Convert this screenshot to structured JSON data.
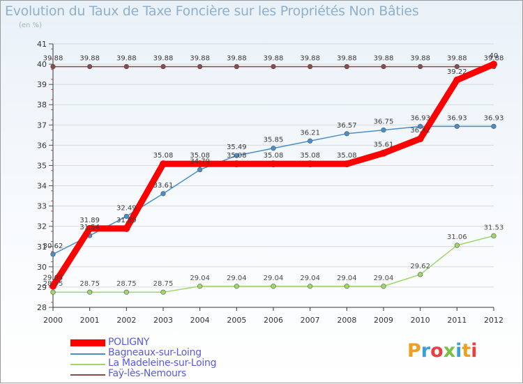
{
  "title": "Evolution du Taux de Taxe Foncière sur les Propriétés Non Bâties",
  "unit": "(en %)",
  "logo": "Proxiti",
  "chart_data": {
    "type": "line",
    "title": "Evolution du Taux de Taxe Foncière sur les Propriétés Non Bâties",
    "ylabel": "(en %)",
    "ylim": [
      28,
      41
    ],
    "yticks": [
      "28",
      "29",
      "30",
      "31",
      "32",
      "33",
      "34",
      "35",
      "36",
      "37",
      "38",
      "39",
      "40",
      "41"
    ],
    "x": [
      "2000",
      "2001",
      "2002",
      "2003",
      "2004",
      "2005",
      "2006",
      "2007",
      "2008",
      "2009",
      "2010",
      "2011",
      "2012"
    ],
    "series": [
      {
        "name": "POLIGNY",
        "color": "#ff0000",
        "values": [
          29.05,
          31.89,
          31.89,
          35.08,
          35.08,
          35.08,
          35.08,
          35.08,
          35.08,
          35.61,
          36.32,
          39.22,
          40
        ],
        "labels": [
          "29.05",
          "31.89",
          "31.89",
          "35.08",
          "35.08",
          "35.08",
          "35.08",
          "35.08",
          "35.08",
          "35.61",
          "36.32",
          "39.22",
          "40"
        ]
      },
      {
        "name": "Bagneaux-sur-Loing",
        "color": "#4a8ec9",
        "values": [
          30.62,
          31.54,
          32.49,
          33.61,
          34.79,
          35.49,
          35.85,
          36.21,
          36.57,
          36.75,
          36.93,
          36.93,
          36.93
        ],
        "labels": [
          "30.62",
          "31.54",
          "32.49",
          "33.61",
          "34.79",
          "35.49",
          "35.85",
          "36.21",
          "36.57",
          "36.75",
          "36.93",
          "36.93",
          "36.93"
        ]
      },
      {
        "name": "La Madeleine-sur-Loing",
        "color": "#9fd86a",
        "values": [
          28.75,
          28.75,
          28.75,
          28.75,
          29.04,
          29.04,
          29.04,
          29.04,
          29.04,
          29.04,
          29.62,
          31.06,
          31.53
        ],
        "labels": [
          "28.75",
          "28.75",
          "28.75",
          "28.75",
          "29.04",
          "29.04",
          "29.04",
          "29.04",
          "29.04",
          "29.04",
          "29.62",
          "31.06",
          "31.53"
        ]
      },
      {
        "name": "Faÿ-lès-Nemours",
        "color": "#8a4a4a",
        "values": [
          39.88,
          39.88,
          39.88,
          39.88,
          39.88,
          39.88,
          39.88,
          39.88,
          39.88,
          39.88,
          39.88,
          39.88,
          39.88
        ],
        "labels": [
          "39.88",
          "39.88",
          "39.88",
          "39.88",
          "39.88",
          "39.88",
          "39.88",
          "39.88",
          "39.88",
          "39.88",
          "39.88",
          "39.88",
          "39.88"
        ]
      }
    ]
  }
}
